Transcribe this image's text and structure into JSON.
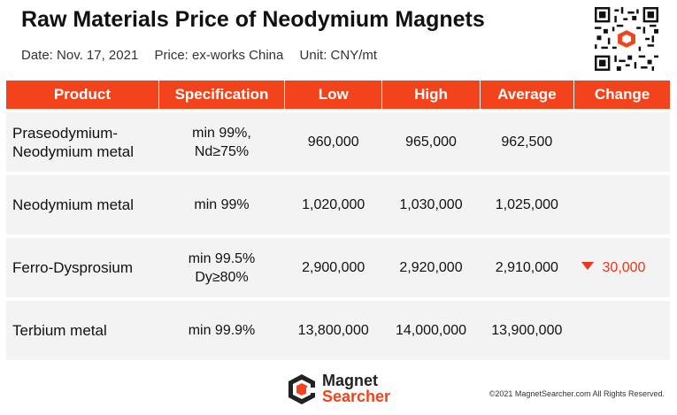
{
  "header": {
    "title": "Raw Materials Price of Neodymium Magnets",
    "date": "Date: Nov. 17, 2021",
    "price": "Price: ex-works China",
    "unit": "Unit: CNY/mt"
  },
  "table": {
    "columns": [
      "Product",
      "Specification",
      "Low",
      "High",
      "Average",
      "Change"
    ],
    "rows": [
      {
        "product_line1": "Praseodymium-",
        "product_line2": "Neodymium metal",
        "spec_line1": "min 99%,",
        "spec_line2": "Nd≥75%",
        "low": "960,000",
        "high": "965,000",
        "average": "962,500",
        "change": ""
      },
      {
        "product_line1": "Neodymium metal",
        "product_line2": "",
        "spec_line1": "min 99%",
        "spec_line2": "",
        "low": "1,020,000",
        "high": "1,030,000",
        "average": "1,025,000",
        "change": ""
      },
      {
        "product_line1": "Ferro-Dysprosium",
        "product_line2": "",
        "spec_line1": "min 99.5%",
        "spec_line2": "Dy≥80%",
        "low": "2,900,000",
        "high": "2,920,000",
        "average": "2,910,000",
        "change": "30,000",
        "change_direction": "down"
      },
      {
        "product_line1": "Terbium metal",
        "product_line2": "",
        "spec_line1": "min 99.9%",
        "spec_line2": "",
        "low": "13,800,000",
        "high": "14,000,000",
        "average": "13,900,000",
        "change": ""
      }
    ]
  },
  "footer": {
    "logo_line1": "Magnet",
    "logo_line2": "Searcher",
    "copyright": "©2021 MagnetSearcher.com All Rights Reserved."
  },
  "colors": {
    "accent": "#f2431c",
    "row_bg": "#f3f3f3",
    "change_down": "#e8371a"
  }
}
